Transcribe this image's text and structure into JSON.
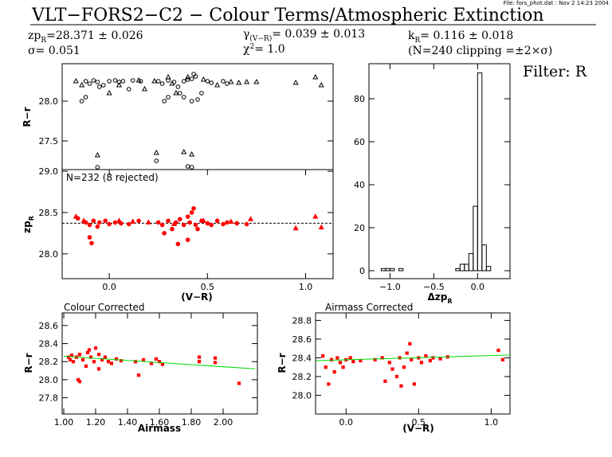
{
  "header": {
    "file_info": "File: fors_phot.dat : Nov  2 14:23 2004",
    "title": "VLT−FORS2−C2 − Colour Terms/Atmospheric Extinction",
    "zp": {
      "symbol": "zp",
      "sub": "R",
      "text": "=28.371 ± 0.026"
    },
    "sigma": "σ= 0.051",
    "gamma": {
      "symbol": "γ",
      "sub": "(V−R)",
      "text": "= 0.039 ± 0.013"
    },
    "chi": {
      "symbol": "χ",
      "sup": "2",
      "text": "=  1.0"
    },
    "k": {
      "symbol": "k",
      "sub": "R",
      "text": "= 0.116 ± 0.018"
    },
    "clipping": "(N=240 clipping =±2×σ)",
    "filter": "Filter: R"
  },
  "chart_data": [
    {
      "type": "scatter",
      "ylabel": "R−r",
      "xlim": [
        -0.24,
        1.14
      ],
      "ylim": [
        27.14,
        28.47
      ],
      "yticks": [
        27.5,
        {
          "value": 28,
          "label": "28.0"
        }
      ],
      "series": [
        {
          "marker": "circle",
          "filled": false,
          "color": "#000000",
          "x": [
            -0.12,
            -0.1,
            -0.08,
            -0.06,
            -0.05,
            -0.14,
            -0.12,
            -0.03,
            0.0,
            0.03,
            0.05,
            0.07,
            0.12,
            0.25,
            0.27,
            0.3,
            0.33,
            0.35,
            0.28,
            0.3,
            0.36,
            0.38,
            0.4,
            0.42,
            0.44,
            0.42,
            0.45,
            0.5,
            0.52,
            0.58,
            0.6,
            -0.06,
            0.24,
            0.4,
            0.42,
            0.43,
            0.47,
            0.1,
            0.16,
            0.38
          ],
          "values": [
            28.25,
            28.22,
            28.26,
            28.24,
            28.18,
            28.0,
            28.05,
            28.2,
            28.25,
            28.26,
            28.24,
            28.25,
            28.26,
            28.25,
            28.22,
            28.26,
            28.24,
            28.18,
            28.0,
            28.05,
            28.1,
            28.25,
            28.27,
            28.28,
            28.31,
            28.0,
            28.02,
            28.25,
            28.23,
            28.25,
            28.22,
            27.17,
            27.25,
            27.18,
            27.17,
            28.34,
            28.1,
            28.15,
            28.25,
            28.05
          ]
        },
        {
          "marker": "triangle",
          "filled": false,
          "color": "#000000",
          "x": [
            -0.17,
            -0.14,
            0.0,
            0.05,
            0.15,
            0.18,
            0.23,
            0.32,
            0.4,
            0.48,
            0.55,
            0.62,
            0.66,
            0.7,
            0.75,
            0.95,
            1.05,
            1.08,
            -0.06,
            0.24,
            0.38,
            0.42,
            0.34,
            0.3
          ],
          "values": [
            28.25,
            28.2,
            28.1,
            28.2,
            28.26,
            28.15,
            28.25,
            28.22,
            28.3,
            28.27,
            28.2,
            28.24,
            28.23,
            28.24,
            28.24,
            28.23,
            28.3,
            28.2,
            27.32,
            27.35,
            27.36,
            27.33,
            28.1,
            28.3
          ]
        }
      ]
    },
    {
      "type": "scatter",
      "ylabel": "zp",
      "ylabel_sub": "R",
      "xlabel": "(V−R)",
      "annotation": "N=232 (8 rejected)",
      "xlim": [
        -0.24,
        1.14
      ],
      "ylim": [
        27.7,
        29.02
      ],
      "xticks": [
        {
          "value": 0,
          "label": "0.0"
        },
        0.5,
        {
          "value": 1,
          "label": "1.0"
        }
      ],
      "yticks": [
        {
          "value": 28,
          "label": "28.0"
        },
        28.5,
        {
          "value": 29,
          "label": "29.0"
        }
      ],
      "hline": 28.371,
      "series": [
        {
          "marker": "circle",
          "filled": true,
          "color": "#ff0000",
          "x": [
            -0.16,
            -0.12,
            -0.1,
            -0.1,
            -0.09,
            -0.08,
            -0.06,
            -0.05,
            -0.02,
            0.0,
            0.03,
            0.06,
            0.1,
            0.15,
            0.25,
            0.27,
            0.28,
            0.3,
            0.32,
            0.34,
            0.36,
            0.38,
            0.4,
            0.41,
            0.42,
            0.43,
            0.44,
            0.45,
            0.47,
            0.5,
            0.52,
            0.55,
            0.58,
            0.6,
            0.65,
            0.7,
            0.35,
            0.4
          ],
          "values": [
            28.43,
            28.38,
            28.35,
            28.2,
            28.13,
            28.4,
            28.33,
            28.38,
            28.4,
            28.36,
            28.38,
            28.37,
            28.36,
            28.4,
            28.38,
            28.35,
            28.25,
            28.4,
            28.3,
            28.38,
            28.42,
            28.35,
            28.45,
            28.38,
            28.5,
            28.55,
            28.35,
            28.3,
            28.4,
            28.37,
            28.35,
            28.4,
            28.36,
            28.38,
            28.37,
            28.36,
            28.12,
            28.17
          ]
        },
        {
          "marker": "triangle",
          "filled": true,
          "color": "#ff0000",
          "x": [
            -0.17,
            -0.13,
            0.05,
            0.12,
            0.2,
            0.33,
            0.48,
            0.62,
            0.72,
            0.95,
            1.05,
            1.08
          ],
          "values": [
            28.45,
            28.4,
            28.4,
            28.39,
            28.38,
            28.36,
            28.4,
            28.39,
            28.42,
            28.31,
            28.45,
            28.32
          ]
        }
      ]
    },
    {
      "type": "histogram",
      "xlabel": "Δzp",
      "xlabel_sub": "R",
      "color": "#000000",
      "xlim": [
        -1.24,
        0.37
      ],
      "ylim": [
        -3.7,
        96.3
      ],
      "xticks": [
        {
          "value": -1,
          "label": "−1.0"
        },
        {
          "value": -0.5,
          "label": "−0.5"
        },
        {
          "value": 0,
          "label": "0.0"
        }
      ],
      "yticks": [
        0,
        20,
        40,
        60,
        80
      ],
      "bins": [
        -1.15,
        -1.1,
        -1.05,
        -1.0,
        -0.95,
        -0.9,
        -0.85,
        -0.8,
        -0.75,
        -0.7,
        -0.65,
        -0.6,
        -0.55,
        -0.5,
        -0.45,
        -0.4,
        -0.35,
        -0.3,
        -0.25,
        -0.2,
        -0.15,
        -0.1,
        -0.05,
        0,
        0.05,
        0.1,
        0.15,
        0.2
      ],
      "values": [
        0,
        1,
        1,
        1,
        0,
        1,
        0,
        0,
        0,
        0,
        0,
        0,
        0,
        0,
        0,
        0,
        0,
        0,
        1,
        3,
        3,
        8,
        30,
        92,
        12,
        2,
        0
      ]
    },
    {
      "type": "scatter",
      "title": "Colour Corrected",
      "xlabel": "Airmass",
      "ylabel": "R−r",
      "xlim": [
        0.99,
        2.215
      ],
      "ylim": [
        27.62,
        28.74
      ],
      "xticks": [
        {
          "value": 1,
          "label": "1.00"
        },
        {
          "value": 1.2,
          "label": "1.20"
        },
        {
          "value": 1.4,
          "label": "1.40"
        },
        {
          "value": 1.6,
          "label": "1.60"
        },
        {
          "value": 1.8,
          "label": "1.80"
        },
        {
          "value": 2,
          "label": "2.00"
        }
      ],
      "yticks": [
        27.8,
        {
          "value": 28,
          "label": "28.0"
        },
        28.2,
        28.4,
        28.6
      ],
      "fit": {
        "color": "#00dd00",
        "x": [
          1.0,
          2.2
        ],
        "values": [
          28.26,
          28.12
        ]
      },
      "series": [
        {
          "marker": "square",
          "filled": true,
          "color": "#ff0000",
          "x": [
            1.03,
            1.04,
            1.05,
            1.06,
            1.08,
            1.09,
            1.1,
            1.1,
            1.12,
            1.14,
            1.15,
            1.17,
            1.19,
            1.2,
            1.22,
            1.24,
            1.26,
            1.28,
            1.3,
            1.33,
            1.36,
            1.45,
            1.47,
            1.5,
            1.55,
            1.58,
            1.6,
            1.62,
            1.85,
            1.85,
            1.95,
            1.95,
            2.1,
            1.16,
            1.22
          ],
          "values": [
            28.25,
            28.22,
            28.27,
            28.2,
            28.25,
            28.0,
            27.98,
            28.28,
            28.22,
            28.15,
            28.3,
            28.25,
            28.2,
            28.35,
            28.28,
            28.22,
            28.25,
            28.2,
            28.18,
            28.23,
            28.21,
            28.2,
            28.05,
            28.22,
            28.18,
            28.23,
            28.2,
            28.17,
            28.25,
            28.2,
            28.24,
            28.19,
            27.96,
            28.33,
            28.12
          ]
        }
      ]
    },
    {
      "type": "scatter",
      "title": "Airmass Corrected",
      "xlabel": "(V−R)",
      "ylabel": "R−r",
      "xlim": [
        -0.21,
        1.13
      ],
      "ylim": [
        27.8,
        28.88
      ],
      "xticks": [
        {
          "value": 0,
          "label": "0.0"
        },
        0.5,
        {
          "value": 1,
          "label": "1.0"
        }
      ],
      "yticks": [
        {
          "value": 28,
          "label": "28.0"
        },
        28.2,
        28.4,
        28.6,
        28.8
      ],
      "fit": {
        "color": "#00dd00",
        "x": [
          -0.21,
          1.13
        ],
        "values": [
          28.37,
          28.43
        ]
      },
      "series": [
        {
          "marker": "square",
          "filled": true,
          "color": "#ff0000",
          "x": [
            -0.16,
            -0.14,
            -0.12,
            -0.1,
            -0.08,
            -0.06,
            -0.04,
            -0.02,
            0.0,
            0.03,
            0.05,
            0.1,
            0.2,
            0.25,
            0.27,
            0.3,
            0.32,
            0.35,
            0.37,
            0.4,
            0.42,
            0.44,
            0.45,
            0.47,
            0.5,
            0.52,
            0.55,
            0.58,
            0.6,
            0.65,
            0.7,
            1.05,
            1.08,
            0.38
          ],
          "values": [
            28.42,
            28.3,
            28.12,
            28.38,
            28.25,
            28.4,
            28.35,
            28.3,
            28.38,
            28.4,
            28.36,
            28.37,
            28.38,
            28.4,
            28.15,
            28.35,
            28.28,
            28.2,
            28.4,
            28.3,
            28.45,
            28.55,
            28.38,
            28.12,
            28.4,
            28.35,
            28.42,
            28.37,
            28.4,
            28.39,
            28.41,
            28.48,
            28.38,
            28.1
          ]
        }
      ]
    }
  ]
}
